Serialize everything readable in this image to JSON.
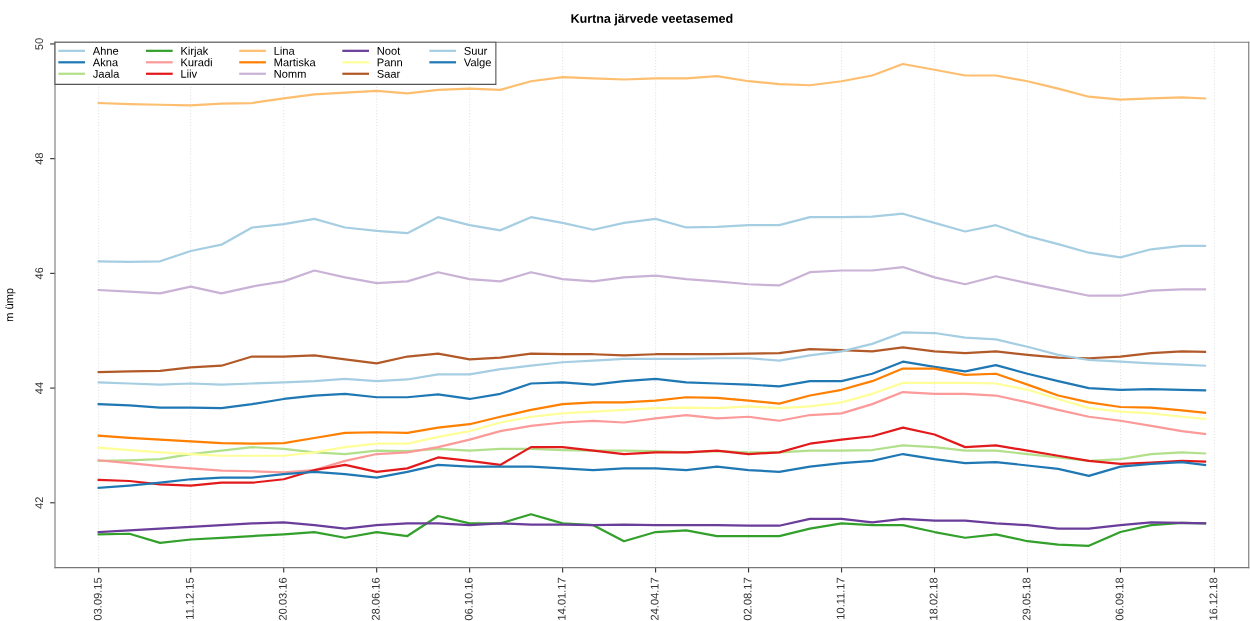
{
  "chart_data": {
    "type": "line",
    "title": "Kurtna järvede veetasemed",
    "ylabel": "m ümp",
    "x": [
      "2015-09-03",
      "2015-10-06",
      "2015-11-08",
      "2015-12-11",
      "2016-01-13",
      "2016-02-15",
      "2016-03-20",
      "2016-04-22",
      "2016-05-25",
      "2016-06-28",
      "2016-07-31",
      "2016-09-02",
      "2016-10-06",
      "2016-11-08",
      "2016-12-11",
      "2017-01-14",
      "2017-02-16",
      "2017-03-21",
      "2017-04-24",
      "2017-05-27",
      "2017-06-29",
      "2017-08-02",
      "2017-09-04",
      "2017-10-07",
      "2017-11-10",
      "2017-12-13",
      "2018-01-15",
      "2018-02-18",
      "2018-03-23",
      "2018-04-25",
      "2018-05-29",
      "2018-07-01",
      "2018-08-03",
      "2018-09-06",
      "2018-10-09",
      "2018-11-11",
      "2018-12-06"
    ],
    "series": [
      {
        "name": "Ahne",
        "color": "#a6cee3",
        "values": [
          46.21,
          46.2,
          46.21,
          46.39,
          46.5,
          46.8,
          46.86,
          46.95,
          46.8,
          46.74,
          46.7,
          46.98,
          46.84,
          46.75,
          46.98,
          46.88,
          46.76,
          46.88,
          46.95,
          46.8,
          46.81,
          46.84,
          46.84,
          46.98,
          46.98,
          46.99,
          47.04,
          46.88,
          46.73,
          46.84,
          46.65,
          46.51,
          46.36,
          46.28,
          46.42,
          46.48,
          46.48
        ]
      },
      {
        "name": "Akna",
        "color": "#1f78b4",
        "values": [
          43.72,
          43.7,
          43.66,
          43.66,
          43.65,
          43.72,
          43.81,
          43.87,
          43.9,
          43.84,
          43.84,
          43.89,
          43.81,
          43.9,
          44.08,
          44.1,
          44.06,
          44.12,
          44.16,
          44.1,
          44.08,
          44.06,
          44.03,
          44.12,
          44.12,
          44.25,
          44.46,
          44.37,
          44.29,
          44.4,
          44.25,
          44.12,
          44.0,
          43.97,
          43.98,
          43.97,
          43.96
        ]
      },
      {
        "name": "Jaala",
        "color": "#b2df8a",
        "values": [
          42.73,
          42.74,
          42.76,
          42.85,
          42.91,
          42.97,
          42.94,
          42.88,
          42.85,
          42.91,
          42.9,
          42.94,
          42.91,
          42.94,
          42.94,
          42.92,
          42.91,
          42.91,
          42.9,
          42.88,
          42.9,
          42.88,
          42.88,
          42.91,
          42.91,
          42.92,
          43.0,
          42.97,
          42.91,
          42.91,
          42.85,
          42.79,
          42.73,
          42.76,
          42.85,
          42.88,
          42.86
        ]
      },
      {
        "name": "Kirjak",
        "color": "#33a02c",
        "values": [
          41.45,
          41.46,
          41.3,
          41.36,
          41.39,
          41.42,
          41.45,
          41.49,
          41.39,
          41.49,
          41.42,
          41.77,
          41.64,
          41.64,
          41.8,
          41.64,
          41.61,
          41.33,
          41.49,
          41.52,
          41.42,
          41.42,
          41.42,
          41.55,
          41.64,
          41.61,
          41.61,
          41.49,
          41.39,
          41.45,
          41.33,
          41.27,
          41.25,
          41.49,
          41.61,
          41.65,
          41.64
        ]
      },
      {
        "name": "Kuradi",
        "color": "#fb9a99",
        "values": [
          42.74,
          42.69,
          42.64,
          42.6,
          42.56,
          42.55,
          42.53,
          42.57,
          42.73,
          42.85,
          42.88,
          42.97,
          43.1,
          43.25,
          43.34,
          43.4,
          43.43,
          43.4,
          43.47,
          43.53,
          43.47,
          43.5,
          43.43,
          43.53,
          43.56,
          43.72,
          43.93,
          43.9,
          43.9,
          43.87,
          43.75,
          43.62,
          43.5,
          43.43,
          43.34,
          43.25,
          43.2
        ]
      },
      {
        "name": "Liiv",
        "color": "#e31a1c",
        "values": [
          42.4,
          42.38,
          42.32,
          42.3,
          42.35,
          42.35,
          42.41,
          42.57,
          42.66,
          42.54,
          42.6,
          42.79,
          42.73,
          42.66,
          42.97,
          42.97,
          42.91,
          42.85,
          42.88,
          42.88,
          42.91,
          42.85,
          42.88,
          43.03,
          43.1,
          43.16,
          43.31,
          43.19,
          42.97,
          43.0,
          42.91,
          42.82,
          42.73,
          42.68,
          42.7,
          42.73,
          42.72
        ]
      },
      {
        "name": "Lina",
        "color": "#fdbf6f",
        "values": [
          48.97,
          48.95,
          48.94,
          48.93,
          48.96,
          48.97,
          49.05,
          49.12,
          49.15,
          49.18,
          49.14,
          49.2,
          49.22,
          49.2,
          49.35,
          49.42,
          49.4,
          49.38,
          49.4,
          49.4,
          49.44,
          49.35,
          49.3,
          49.28,
          49.35,
          49.45,
          49.65,
          49.55,
          49.45,
          49.45,
          49.35,
          49.22,
          49.08,
          49.03,
          49.05,
          49.07,
          49.05
        ]
      },
      {
        "name": "Martiska",
        "color": "#ff7f00",
        "values": [
          43.17,
          43.13,
          43.1,
          43.07,
          43.04,
          43.03,
          43.04,
          43.13,
          43.22,
          43.23,
          43.22,
          43.31,
          43.37,
          43.5,
          43.62,
          43.72,
          43.75,
          43.75,
          43.78,
          43.84,
          43.83,
          43.78,
          43.73,
          43.87,
          43.97,
          44.12,
          44.34,
          44.34,
          44.23,
          44.25,
          44.06,
          43.87,
          43.75,
          43.67,
          43.66,
          43.61,
          43.57
        ]
      },
      {
        "name": "Nomm",
        "color": "#cab2d6",
        "values": [
          45.71,
          45.68,
          45.65,
          45.77,
          45.65,
          45.77,
          45.86,
          46.05,
          45.93,
          45.83,
          45.86,
          46.02,
          45.9,
          45.86,
          46.02,
          45.9,
          45.86,
          45.93,
          45.96,
          45.9,
          45.86,
          45.81,
          45.79,
          46.02,
          46.05,
          46.05,
          46.11,
          45.93,
          45.81,
          45.95,
          45.83,
          45.72,
          45.61,
          45.61,
          45.7,
          45.72,
          45.72
        ]
      },
      {
        "name": "Noot",
        "color": "#6a3d9a",
        "values": [
          41.49,
          41.52,
          41.55,
          41.58,
          41.61,
          41.64,
          41.66,
          41.61,
          41.55,
          41.61,
          41.64,
          41.64,
          41.61,
          41.64,
          41.62,
          41.62,
          41.61,
          41.62,
          41.61,
          41.61,
          41.61,
          41.6,
          41.6,
          41.72,
          41.72,
          41.66,
          41.72,
          41.69,
          41.69,
          41.64,
          41.61,
          41.55,
          41.55,
          41.61,
          41.66,
          41.65,
          41.64
        ]
      },
      {
        "name": "Pann",
        "color": "#ffff99",
        "values": [
          42.96,
          42.92,
          42.88,
          42.85,
          42.82,
          42.82,
          42.82,
          42.88,
          42.97,
          43.03,
          43.03,
          43.15,
          43.25,
          43.4,
          43.5,
          43.56,
          43.59,
          43.62,
          43.65,
          43.66,
          43.65,
          43.68,
          43.65,
          43.68,
          43.75,
          43.9,
          44.09,
          44.09,
          44.09,
          44.08,
          43.97,
          43.81,
          43.65,
          43.59,
          43.56,
          43.5,
          43.46
        ]
      },
      {
        "name": "Saar",
        "color": "#b15928",
        "values": [
          44.28,
          44.29,
          44.3,
          44.36,
          44.39,
          44.55,
          44.55,
          44.57,
          44.5,
          44.43,
          44.55,
          44.6,
          44.5,
          44.53,
          44.6,
          44.59,
          44.59,
          44.57,
          44.59,
          44.59,
          44.59,
          44.6,
          44.61,
          44.68,
          44.66,
          44.64,
          44.71,
          44.64,
          44.61,
          44.64,
          44.58,
          44.53,
          44.52,
          44.55,
          44.61,
          44.64,
          44.63
        ]
      },
      {
        "name": "Suur",
        "color": "#a6cee3",
        "values": [
          44.1,
          44.08,
          44.06,
          44.08,
          44.06,
          44.08,
          44.1,
          44.12,
          44.16,
          44.12,
          44.15,
          44.24,
          44.24,
          44.33,
          44.39,
          44.45,
          44.48,
          44.51,
          44.51,
          44.51,
          44.52,
          44.52,
          44.48,
          44.57,
          44.64,
          44.77,
          44.97,
          44.96,
          44.88,
          44.85,
          44.72,
          44.58,
          44.49,
          44.46,
          44.43,
          44.41,
          44.39
        ]
      },
      {
        "name": "Valge",
        "color": "#1f78b4",
        "values": [
          42.26,
          42.3,
          42.35,
          42.41,
          42.44,
          42.44,
          42.5,
          42.54,
          42.5,
          42.44,
          42.54,
          42.66,
          42.63,
          42.63,
          42.63,
          42.6,
          42.57,
          42.6,
          42.6,
          42.57,
          42.63,
          42.57,
          42.54,
          42.63,
          42.69,
          42.73,
          42.85,
          42.76,
          42.69,
          42.71,
          42.65,
          42.59,
          42.47,
          42.63,
          42.68,
          42.71,
          42.66
        ]
      }
    ],
    "xlim": [
      "2015-07-18",
      "2019-01-22"
    ],
    "xticks": [
      {
        "value": "2015-09-03",
        "label": "03.09.15"
      },
      {
        "value": "2015-12-11",
        "label": "11.12.15"
      },
      {
        "value": "2016-03-20",
        "label": "20.03.16"
      },
      {
        "value": "2016-06-28",
        "label": "28.06.16"
      },
      {
        "value": "2016-10-06",
        "label": "06.10.16"
      },
      {
        "value": "2017-01-14",
        "label": "14.01.17"
      },
      {
        "value": "2017-04-24",
        "label": "24.04.17"
      },
      {
        "value": "2017-08-02",
        "label": "02.08.17"
      },
      {
        "value": "2017-11-10",
        "label": "10.11.17"
      },
      {
        "value": "2018-02-18",
        "label": "18.02.18"
      },
      {
        "value": "2018-05-29",
        "label": "29.05.18"
      },
      {
        "value": "2018-09-06",
        "label": "06.09.18"
      },
      {
        "value": "2018-12-16",
        "label": "16.12.18"
      }
    ],
    "ylim": [
      40.87,
      50.03
    ],
    "yticks": [
      42,
      44,
      46,
      48,
      50
    ],
    "grid": "x",
    "legend": "top left",
    "line_style": "solid"
  }
}
